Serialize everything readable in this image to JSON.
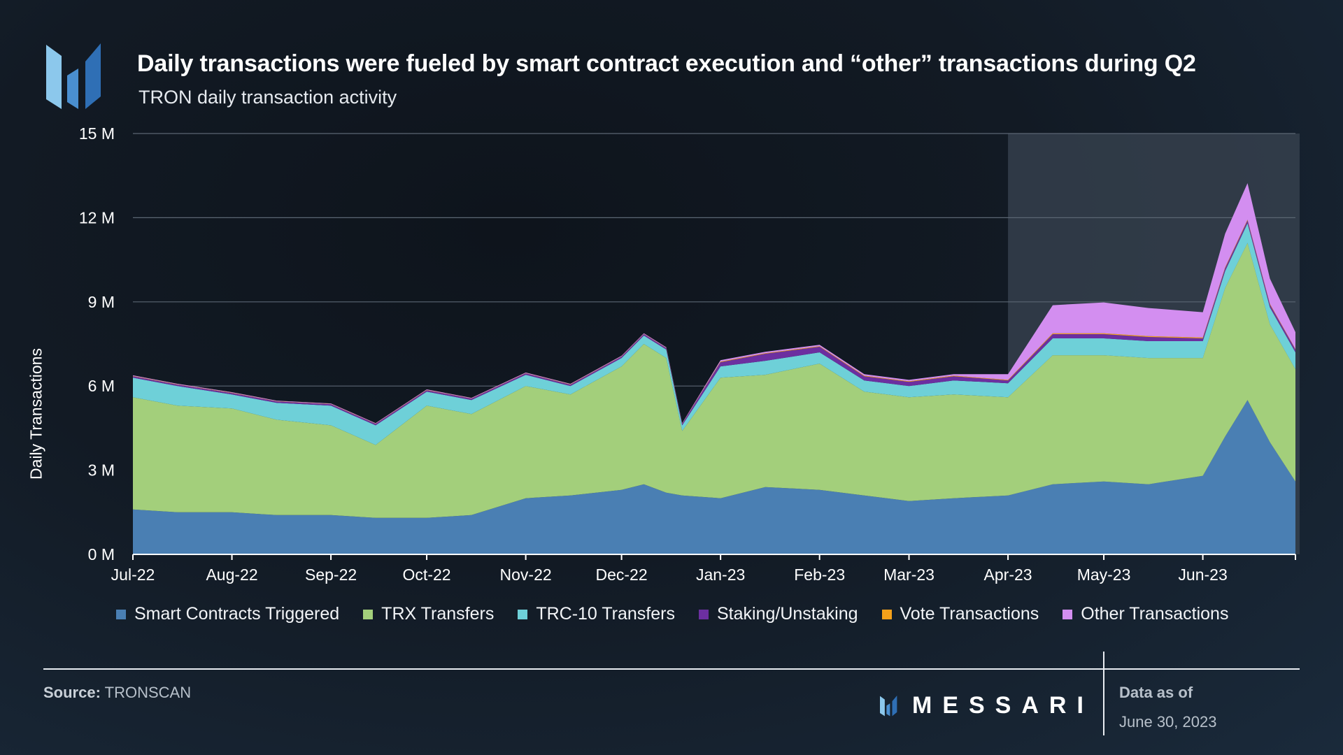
{
  "header": {
    "title": "Daily transactions were fueled by smart contract execution and “other” transactions during Q2",
    "subtitle": "TRON daily transaction activity"
  },
  "footer": {
    "source_label": "Source:",
    "source_value": "TRONSCAN",
    "brand": "MESSARI",
    "as_of_label": "Data as of",
    "as_of_date": "June 30, 2023"
  },
  "colors": {
    "smart_contracts": "#4a7fb3",
    "trx": "#a3cf7b",
    "trc10": "#6ed0d8",
    "staking": "#6c2fa0",
    "vote": "#f5a11a",
    "other": "#d38ef0",
    "highlight": "#3a4452"
  },
  "chart_data": {
    "type": "area",
    "stacked": true,
    "title": "TRON daily transaction activity",
    "ylabel": "Daily Transactions",
    "xlabel": "",
    "ylim": [
      0,
      15
    ],
    "y_unit": "M",
    "yticks": [
      0,
      3,
      6,
      9,
      12,
      15
    ],
    "ytick_labels": [
      "0 M",
      "3 M",
      "6 M",
      "9 M",
      "12 M",
      "15 M"
    ],
    "x_start": "2022-07-01",
    "x_end": "2023-06-30",
    "xtick_labels": [
      "Jul-22",
      "Aug-22",
      "Sep-22",
      "Oct-22",
      "Nov-22",
      "Dec-22",
      "Jan-23",
      "Feb-23",
      "Mar-23",
      "Apr-23",
      "May-23",
      "Jun-23"
    ],
    "xtick_dates": [
      "2022-07-01",
      "2022-08-01",
      "2022-09-01",
      "2022-10-01",
      "2022-11-01",
      "2022-12-01",
      "2023-01-01",
      "2023-02-01",
      "2023-03-01",
      "2023-04-01",
      "2023-05-01",
      "2023-06-01"
    ],
    "highlight_range": [
      "2023-04-01",
      "2023-06-30"
    ],
    "legend_position": "bottom",
    "series_granularity": "semi-monthly estimates (M transactions)",
    "dates": [
      "2022-07-01",
      "2022-07-15",
      "2022-08-01",
      "2022-08-15",
      "2022-09-01",
      "2022-09-15",
      "2022-10-01",
      "2022-10-15",
      "2022-11-01",
      "2022-11-15",
      "2022-12-01",
      "2022-12-08",
      "2022-12-15",
      "2022-12-20",
      "2023-01-01",
      "2023-01-15",
      "2023-02-01",
      "2023-02-15",
      "2023-03-01",
      "2023-03-15",
      "2023-04-01",
      "2023-04-15",
      "2023-05-01",
      "2023-05-15",
      "2023-06-01",
      "2023-06-08",
      "2023-06-15",
      "2023-06-22",
      "2023-06-30"
    ],
    "series": [
      {
        "name": "Smart Contracts Triggered",
        "color": "#4a7fb3",
        "values": [
          1.6,
          1.5,
          1.5,
          1.4,
          1.4,
          1.3,
          1.3,
          1.4,
          2.0,
          2.1,
          2.3,
          2.5,
          2.2,
          2.1,
          2.0,
          2.4,
          2.3,
          2.1,
          1.9,
          2.0,
          2.1,
          2.5,
          2.6,
          2.5,
          2.8,
          4.2,
          5.5,
          4.0,
          2.6
        ]
      },
      {
        "name": "TRX Transfers",
        "color": "#a3cf7b",
        "values": [
          4.0,
          3.8,
          3.7,
          3.4,
          3.2,
          2.6,
          4.0,
          3.6,
          4.0,
          3.6,
          4.4,
          5.0,
          4.8,
          2.3,
          4.3,
          4.0,
          4.5,
          3.7,
          3.7,
          3.7,
          3.5,
          4.6,
          4.5,
          4.5,
          4.2,
          5.3,
          5.6,
          4.2,
          4.0
        ]
      },
      {
        "name": "TRC-10 Transfers",
        "color": "#6ed0d8",
        "values": [
          0.7,
          0.7,
          0.5,
          0.6,
          0.7,
          0.7,
          0.5,
          0.5,
          0.4,
          0.3,
          0.3,
          0.3,
          0.3,
          0.2,
          0.4,
          0.5,
          0.4,
          0.4,
          0.4,
          0.5,
          0.5,
          0.6,
          0.6,
          0.6,
          0.6,
          0.6,
          0.7,
          0.6,
          0.6
        ]
      },
      {
        "name": "Staking/Unstaking",
        "color": "#6c2fa0",
        "values": [
          0.05,
          0.05,
          0.05,
          0.05,
          0.05,
          0.05,
          0.05,
          0.05,
          0.05,
          0.05,
          0.05,
          0.05,
          0.05,
          0.05,
          0.15,
          0.25,
          0.2,
          0.15,
          0.15,
          0.15,
          0.1,
          0.15,
          0.15,
          0.15,
          0.1,
          0.1,
          0.1,
          0.1,
          0.1
        ]
      },
      {
        "name": "Vote Transactions",
        "color": "#f5a11a",
        "values": [
          0.01,
          0.01,
          0.01,
          0.01,
          0.01,
          0.01,
          0.01,
          0.01,
          0.01,
          0.01,
          0.01,
          0.01,
          0.01,
          0.01,
          0.02,
          0.02,
          0.02,
          0.02,
          0.02,
          0.02,
          0.02,
          0.03,
          0.03,
          0.03,
          0.03,
          0.03,
          0.03,
          0.03,
          0.02
        ]
      },
      {
        "name": "Other Transactions",
        "color": "#d38ef0",
        "values": [
          0.02,
          0.02,
          0.02,
          0.02,
          0.02,
          0.02,
          0.02,
          0.02,
          0.02,
          0.02,
          0.02,
          0.02,
          0.02,
          0.02,
          0.05,
          0.05,
          0.05,
          0.05,
          0.05,
          0.05,
          0.2,
          1.0,
          1.1,
          1.0,
          0.9,
          1.2,
          1.3,
          0.9,
          0.6
        ]
      }
    ]
  }
}
